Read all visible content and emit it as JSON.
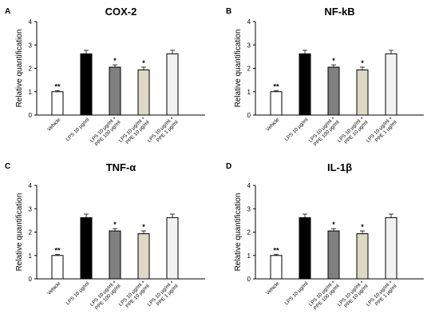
{
  "chart_data": [
    {
      "type": "bar",
      "panel": "A",
      "title": "COX-2",
      "ylabel": "Relative quantification",
      "xlabel": "",
      "ylim": [
        0,
        4
      ],
      "yticks": [
        "0",
        "1",
        "2",
        "3",
        "4"
      ],
      "categories": [
        [
          "Vehicle"
        ],
        [
          "LPS 10 μg/ml"
        ],
        [
          "LPS 10 μg/ml +",
          "PPE 100 μg/ml"
        ],
        [
          "LPS 10 μg/ml +",
          "PPE 10 μg/ml"
        ],
        [
          "LPS 10 μg/ml +",
          "PPE 1 μg/ml"
        ]
      ],
      "values": [
        1.0,
        2.62,
        2.05,
        1.93,
        2.62
      ],
      "errors": [
        0.05,
        0.15,
        0.1,
        0.12,
        0.15
      ],
      "annotations": [
        "**",
        "",
        "*",
        "*",
        ""
      ],
      "colors": [
        "#ffffff",
        "#000000",
        "#808080",
        "#ddd9c3",
        "#f2f2f2"
      ],
      "grid": false
    },
    {
      "type": "bar",
      "panel": "B",
      "title": "NF-kB",
      "ylabel": "Relative quantification",
      "xlabel": "",
      "ylim": [
        0,
        4
      ],
      "yticks": [
        "0",
        "1",
        "2",
        "3",
        "4"
      ],
      "categories": [
        [
          "Vehicle"
        ],
        [
          "LPS 10 μg/ml"
        ],
        [
          "LPS 10 μg/ml +",
          "PPE 100 μg/ml"
        ],
        [
          "LPS 10 μg/ml +",
          "PPE 10 μg/ml"
        ],
        [
          "LPS 10 μg/ml +",
          "PPE 1 μg/ml"
        ]
      ],
      "values": [
        1.0,
        2.62,
        2.05,
        1.93,
        2.62
      ],
      "errors": [
        0.05,
        0.15,
        0.1,
        0.12,
        0.15
      ],
      "annotations": [
        "**",
        "",
        "*",
        "*",
        ""
      ],
      "colors": [
        "#ffffff",
        "#000000",
        "#808080",
        "#ddd9c3",
        "#f2f2f2"
      ],
      "grid": false
    },
    {
      "type": "bar",
      "panel": "C",
      "title": "TNF-α",
      "ylabel": "Relative quantification",
      "xlabel": "",
      "ylim": [
        0,
        4
      ],
      "yticks": [
        "0",
        "1",
        "2",
        "3",
        "4"
      ],
      "categories": [
        [
          "Vehicle"
        ],
        [
          "LPS 10 μg/ml"
        ],
        [
          "LPS 10 μg/ml +",
          "PPE 100 μg/ml"
        ],
        [
          "LPS 10 μg/ml +",
          "PPE 10 μg/ml"
        ],
        [
          "LPS 10 μg/ml +",
          "PPE 1 μg/ml"
        ]
      ],
      "values": [
        1.0,
        2.62,
        2.05,
        1.93,
        2.62
      ],
      "errors": [
        0.05,
        0.15,
        0.1,
        0.12,
        0.15
      ],
      "annotations": [
        "**",
        "",
        "*",
        "*",
        ""
      ],
      "colors": [
        "#ffffff",
        "#000000",
        "#808080",
        "#ddd9c3",
        "#f2f2f2"
      ],
      "grid": false
    },
    {
      "type": "bar",
      "panel": "D",
      "title": "IL-1β",
      "ylabel": "Relative quantification",
      "xlabel": "",
      "ylim": [
        0,
        4
      ],
      "yticks": [
        "0",
        "1",
        "2",
        "3",
        "4"
      ],
      "categories": [
        [
          "Vehicle"
        ],
        [
          "LPS 10 μg/ml"
        ],
        [
          "LPS 10 μg/ml +",
          "PPE 100 μg/ml"
        ],
        [
          "LPS 10 μg/ml +",
          "PPE 10 μg/ml"
        ],
        [
          "LPS 10 μg/ml +",
          "PPE 1 μg/ml"
        ]
      ],
      "values": [
        1.0,
        2.62,
        2.05,
        1.93,
        2.62
      ],
      "errors": [
        0.05,
        0.15,
        0.1,
        0.12,
        0.15
      ],
      "annotations": [
        "**",
        "",
        "*",
        "*",
        ""
      ],
      "colors": [
        "#ffffff",
        "#000000",
        "#808080",
        "#ddd9c3",
        "#f2f2f2"
      ],
      "grid": false
    }
  ]
}
